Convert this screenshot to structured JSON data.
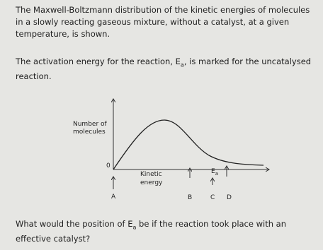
{
  "intro": "The Maxwell-Boltzmann distribution of the kinetic energies of molecules in a slowly reacting gaseous mixture, without a catalyst, at a given temperature, is shown.",
  "activation": {
    "before": "The activation energy for the reaction, E",
    "subscript": "a",
    "after": ", is marked for the uncatalysed reaction."
  },
  "diagram": {
    "y_label": [
      "Number of",
      "molecules"
    ],
    "origin": "0",
    "x_label": [
      "Kinetic",
      "energy"
    ],
    "ea_label": {
      "main": "E",
      "sub": "a"
    },
    "options": [
      "A",
      "B",
      "C",
      "D"
    ]
  },
  "question": {
    "before": "What would the position of E",
    "subscript": "a",
    "after": " be if the reaction took place with an effective catalyst?"
  }
}
